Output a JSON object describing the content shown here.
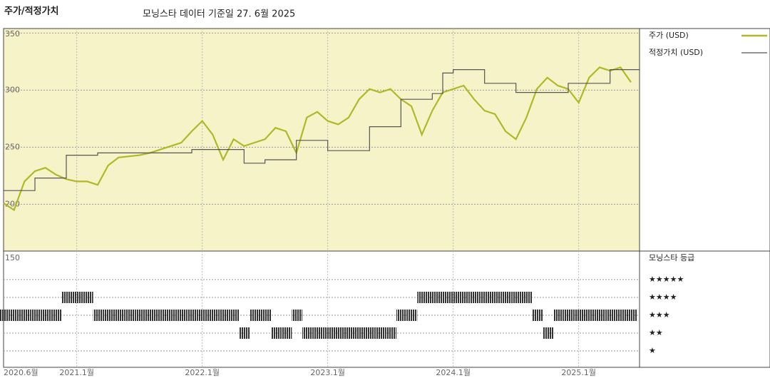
{
  "chart_data": {
    "type": "line",
    "title": "주가/적정가치",
    "subtitle": "모닝스타 데이터 기준일 27. 6월 2025",
    "xlim": [
      "2020-06",
      "2025-06"
    ],
    "xticks": [
      {
        "value": "2020-06",
        "label": "2020.6월"
      },
      {
        "value": "2021-01",
        "label": "2021.1월"
      },
      {
        "value": "2022-01",
        "label": "2022.1월"
      },
      {
        "value": "2023-01",
        "label": "2023.1월"
      },
      {
        "value": "2024-01",
        "label": "2024.1월"
      },
      {
        "value": "2025-01",
        "label": "2025.1월"
      }
    ],
    "ylim": [
      159,
      354
    ],
    "yticks": [
      150,
      200,
      250,
      300,
      350
    ],
    "grid": true,
    "x": [
      "2020-06",
      "2020-07",
      "2020-08",
      "2020-09",
      "2020-10",
      "2020-11",
      "2020-12",
      "2021-01",
      "2021-02",
      "2021-03",
      "2021-04",
      "2021-05",
      "2021-06",
      "2021-07",
      "2021-08",
      "2021-09",
      "2021-10",
      "2021-11",
      "2021-12",
      "2022-01",
      "2022-02",
      "2022-03",
      "2022-04",
      "2022-05",
      "2022-06",
      "2022-07",
      "2022-08",
      "2022-09",
      "2022-10",
      "2022-11",
      "2022-12",
      "2023-01",
      "2023-02",
      "2023-03",
      "2023-04",
      "2023-05",
      "2023-06",
      "2023-07",
      "2023-08",
      "2023-09",
      "2023-10",
      "2023-11",
      "2023-12",
      "2024-01",
      "2024-02",
      "2024-03",
      "2024-04",
      "2024-05",
      "2024-06",
      "2024-07",
      "2024-08",
      "2024-09",
      "2024-10",
      "2024-11",
      "2024-12",
      "2025-01",
      "2025-02",
      "2025-03",
      "2025-04",
      "2025-05",
      "2025-06"
    ],
    "series": [
      {
        "name": "주가 (USD)",
        "color": "#b0b828",
        "step": false,
        "values": [
          201,
          195,
          220,
          229,
          232,
          226,
          222,
          220,
          220,
          217,
          234,
          241,
          242,
          243,
          245,
          248,
          251,
          254,
          264,
          273,
          261,
          239,
          257,
          251,
          254,
          257,
          267,
          264,
          245,
          276,
          281,
          273,
          270,
          276,
          292,
          301,
          298,
          301,
          292,
          286,
          261,
          282,
          298,
          301,
          304,
          292,
          282,
          279,
          264,
          257,
          276,
          301,
          311,
          304,
          301,
          289,
          311,
          320,
          317,
          320,
          307
        ]
      },
      {
        "name": "적정가치 (USD)",
        "color": "#555555",
        "step": true,
        "values": [
          212,
          212,
          212,
          223,
          223,
          223,
          243,
          243,
          243,
          245,
          245,
          245,
          245,
          245,
          245,
          245,
          245,
          245,
          248,
          248,
          248,
          248,
          248,
          236,
          236,
          239,
          239,
          239,
          256,
          256,
          256,
          247,
          247,
          247,
          247,
          268,
          268,
          268,
          292,
          292,
          292,
          297,
          315,
          318,
          318,
          318,
          306,
          306,
          306,
          298,
          298,
          298,
          298,
          298,
          306,
          306,
          306,
          306,
          318,
          318,
          318
        ]
      }
    ],
    "rating_title": "모닝스타 등급",
    "rating_levels": [
      5,
      4,
      3,
      2,
      1
    ],
    "rating_labels": [
      "★★★★★",
      "★★★★",
      "★★★",
      "★★",
      "★"
    ],
    "rating_values": [
      3,
      3,
      3,
      3,
      3,
      3,
      4,
      4,
      4,
      3,
      3,
      3,
      3,
      3,
      3,
      3,
      3,
      3,
      3,
      3,
      3,
      3,
      3,
      2,
      3,
      3,
      2,
      2,
      3,
      2,
      2,
      2,
      2,
      2,
      2,
      2,
      2,
      2,
      3,
      3,
      4,
      4,
      4,
      4,
      4,
      4,
      4,
      4,
      4,
      4,
      4,
      3,
      2,
      3,
      3,
      3,
      3,
      3,
      3,
      3,
      3
    ]
  }
}
